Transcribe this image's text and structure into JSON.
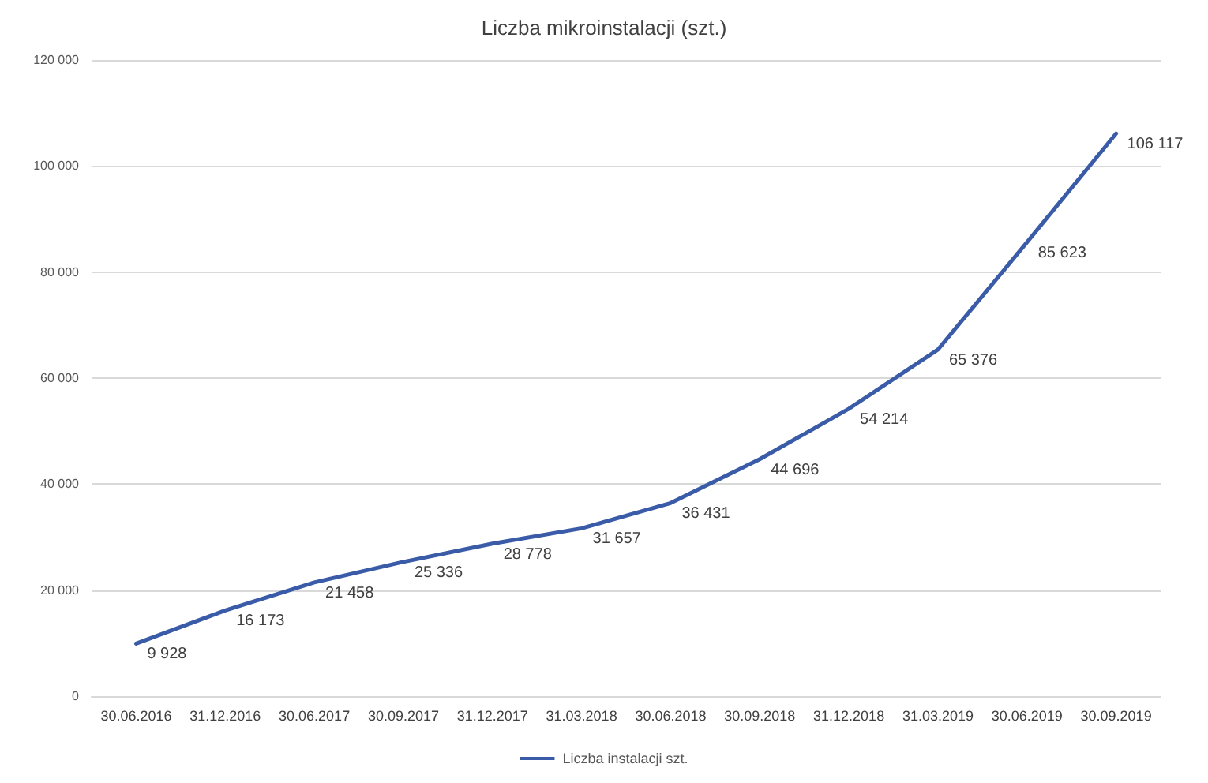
{
  "chart_data": {
    "type": "line",
    "title": "Liczba mikroinstalacji (szt.)",
    "categories": [
      "30.06.2016",
      "31.12.2016",
      "30.06.2017",
      "30.09.2017",
      "31.12.2017",
      "31.03.2018",
      "30.06.2018",
      "30.09.2018",
      "31.12.2018",
      "31.03.2019",
      "30.06.2019",
      "30.09.2019"
    ],
    "series": [
      {
        "name": "Liczba instalacji szt.",
        "color": "#3a5ba8",
        "values": [
          9928,
          16173,
          21458,
          25336,
          28778,
          31657,
          36431,
          44696,
          54214,
          65376,
          85623,
          106117
        ],
        "value_labels": [
          "9 928",
          "16 173",
          "21 458",
          "25 336",
          "28 778",
          "31 657",
          "36 431",
          "44 696",
          "54 214",
          "65 376",
          "85 623",
          "106 117"
        ]
      }
    ],
    "ylim": [
      0,
      120000
    ],
    "yticks": [
      {
        "value": 0,
        "label": "0"
      },
      {
        "value": 20000,
        "label": "20 000"
      },
      {
        "value": 40000,
        "label": "40 000"
      },
      {
        "value": 60000,
        "label": "60 000"
      },
      {
        "value": 80000,
        "label": "80 000"
      },
      {
        "value": 100000,
        "label": "100 000"
      },
      {
        "value": 120000,
        "label": "120 000"
      }
    ],
    "grid": "y",
    "legend": "bottom",
    "marker": "none",
    "line_style": "solid"
  }
}
